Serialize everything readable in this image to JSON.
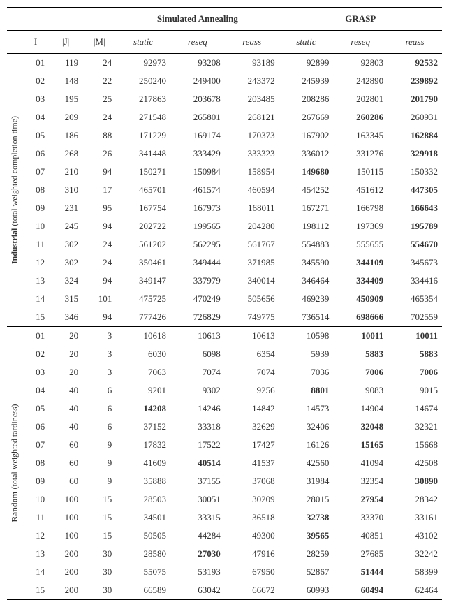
{
  "headers": {
    "sa": "Simulated Annealing",
    "grasp": "GRASP",
    "I": "I",
    "J": "|J|",
    "M": "|M|",
    "static": "static",
    "reseq": "reseq",
    "reass": "reass"
  },
  "groups": [
    {
      "label_bold": "Industrial",
      "label_rest": " (total weighted completion time)",
      "rows": [
        {
          "I": "01",
          "J": "119",
          "M": "24",
          "sa_static": "92973",
          "sa_reseq": "93208",
          "sa_reass": "93189",
          "g_static": "92899",
          "g_reseq": "92803",
          "g_reass": "92532",
          "bold": [
            "g_reass"
          ]
        },
        {
          "I": "02",
          "J": "148",
          "M": "22",
          "sa_static": "250240",
          "sa_reseq": "249400",
          "sa_reass": "243372",
          "g_static": "245939",
          "g_reseq": "242890",
          "g_reass": "239892",
          "bold": [
            "g_reass"
          ]
        },
        {
          "I": "03",
          "J": "195",
          "M": "25",
          "sa_static": "217863",
          "sa_reseq": "203678",
          "sa_reass": "203485",
          "g_static": "208286",
          "g_reseq": "202801",
          "g_reass": "201790",
          "bold": [
            "g_reass"
          ]
        },
        {
          "I": "04",
          "J": "209",
          "M": "24",
          "sa_static": "271548",
          "sa_reseq": "265801",
          "sa_reass": "268121",
          "g_static": "267669",
          "g_reseq": "260286",
          "g_reass": "260931",
          "bold": [
            "g_reseq"
          ]
        },
        {
          "I": "05",
          "J": "186",
          "M": "88",
          "sa_static": "171229",
          "sa_reseq": "169174",
          "sa_reass": "170373",
          "g_static": "167902",
          "g_reseq": "163345",
          "g_reass": "162884",
          "bold": [
            "g_reass"
          ]
        },
        {
          "I": "06",
          "J": "268",
          "M": "26",
          "sa_static": "341448",
          "sa_reseq": "333429",
          "sa_reass": "333323",
          "g_static": "336012",
          "g_reseq": "331276",
          "g_reass": "329918",
          "bold": [
            "g_reass"
          ]
        },
        {
          "I": "07",
          "J": "210",
          "M": "94",
          "sa_static": "150271",
          "sa_reseq": "150984",
          "sa_reass": "158954",
          "g_static": "149680",
          "g_reseq": "150115",
          "g_reass": "150332",
          "bold": [
            "g_static"
          ]
        },
        {
          "I": "08",
          "J": "310",
          "M": "17",
          "sa_static": "465701",
          "sa_reseq": "461574",
          "sa_reass": "460594",
          "g_static": "454252",
          "g_reseq": "451612",
          "g_reass": "447305",
          "bold": [
            "g_reass"
          ]
        },
        {
          "I": "09",
          "J": "231",
          "M": "95",
          "sa_static": "167754",
          "sa_reseq": "167973",
          "sa_reass": "168011",
          "g_static": "167271",
          "g_reseq": "166798",
          "g_reass": "166643",
          "bold": [
            "g_reass"
          ]
        },
        {
          "I": "10",
          "J": "245",
          "M": "94",
          "sa_static": "202722",
          "sa_reseq": "199565",
          "sa_reass": "204280",
          "g_static": "198112",
          "g_reseq": "197369",
          "g_reass": "195789",
          "bold": [
            "g_reass"
          ]
        },
        {
          "I": "11",
          "J": "302",
          "M": "24",
          "sa_static": "561202",
          "sa_reseq": "562295",
          "sa_reass": "561767",
          "g_static": "554883",
          "g_reseq": "555655",
          "g_reass": "554670",
          "bold": [
            "g_reass"
          ]
        },
        {
          "I": "12",
          "J": "302",
          "M": "24",
          "sa_static": "350461",
          "sa_reseq": "349444",
          "sa_reass": "371985",
          "g_static": "345590",
          "g_reseq": "344109",
          "g_reass": "345673",
          "bold": [
            "g_reseq"
          ]
        },
        {
          "I": "13",
          "J": "324",
          "M": "94",
          "sa_static": "349147",
          "sa_reseq": "337979",
          "sa_reass": "340014",
          "g_static": "346464",
          "g_reseq": "334409",
          "g_reass": "334416",
          "bold": [
            "g_reseq"
          ]
        },
        {
          "I": "14",
          "J": "315",
          "M": "101",
          "sa_static": "475725",
          "sa_reseq": "470249",
          "sa_reass": "505656",
          "g_static": "469239",
          "g_reseq": "450909",
          "g_reass": "465354",
          "bold": [
            "g_reseq"
          ]
        },
        {
          "I": "15",
          "J": "346",
          "M": "94",
          "sa_static": "777426",
          "sa_reseq": "726829",
          "sa_reass": "749775",
          "g_static": "736514",
          "g_reseq": "698666",
          "g_reass": "702559",
          "bold": [
            "g_reseq"
          ]
        }
      ]
    },
    {
      "label_bold": "Random",
      "label_rest": " (total weighted tardiness)",
      "rows": [
        {
          "I": "01",
          "J": "20",
          "M": "3",
          "sa_static": "10618",
          "sa_reseq": "10613",
          "sa_reass": "10613",
          "g_static": "10598",
          "g_reseq": "10011",
          "g_reass": "10011",
          "bold": [
            "g_reseq",
            "g_reass"
          ]
        },
        {
          "I": "02",
          "J": "20",
          "M": "3",
          "sa_static": "6030",
          "sa_reseq": "6098",
          "sa_reass": "6354",
          "g_static": "5939",
          "g_reseq": "5883",
          "g_reass": "5883",
          "bold": [
            "g_reseq",
            "g_reass"
          ]
        },
        {
          "I": "03",
          "J": "20",
          "M": "3",
          "sa_static": "7063",
          "sa_reseq": "7074",
          "sa_reass": "7074",
          "g_static": "7036",
          "g_reseq": "7006",
          "g_reass": "7006",
          "bold": [
            "g_reseq",
            "g_reass"
          ]
        },
        {
          "I": "04",
          "J": "40",
          "M": "6",
          "sa_static": "9201",
          "sa_reseq": "9302",
          "sa_reass": "9256",
          "g_static": "8801",
          "g_reseq": "9083",
          "g_reass": "9015",
          "bold": [
            "g_static"
          ]
        },
        {
          "I": "05",
          "J": "40",
          "M": "6",
          "sa_static": "14208",
          "sa_reseq": "14246",
          "sa_reass": "14842",
          "g_static": "14573",
          "g_reseq": "14904",
          "g_reass": "14674",
          "bold": [
            "sa_static"
          ]
        },
        {
          "I": "06",
          "J": "40",
          "M": "6",
          "sa_static": "37152",
          "sa_reseq": "33318",
          "sa_reass": "32629",
          "g_static": "32406",
          "g_reseq": "32048",
          "g_reass": "32321",
          "bold": [
            "g_reseq"
          ]
        },
        {
          "I": "07",
          "J": "60",
          "M": "9",
          "sa_static": "17832",
          "sa_reseq": "17522",
          "sa_reass": "17427",
          "g_static": "16126",
          "g_reseq": "15165",
          "g_reass": "15668",
          "bold": [
            "g_reseq"
          ]
        },
        {
          "I": "08",
          "J": "60",
          "M": "9",
          "sa_static": "41609",
          "sa_reseq": "40514",
          "sa_reass": "41537",
          "g_static": "42560",
          "g_reseq": "41094",
          "g_reass": "42508",
          "bold": [
            "sa_reseq"
          ]
        },
        {
          "I": "09",
          "J": "60",
          "M": "9",
          "sa_static": "35888",
          "sa_reseq": "37155",
          "sa_reass": "37068",
          "g_static": "31984",
          "g_reseq": "32354",
          "g_reass": "30890",
          "bold": [
            "g_reass"
          ]
        },
        {
          "I": "10",
          "J": "100",
          "M": "15",
          "sa_static": "28503",
          "sa_reseq": "30051",
          "sa_reass": "30209",
          "g_static": "28015",
          "g_reseq": "27954",
          "g_reass": "28342",
          "bold": [
            "g_reseq"
          ]
        },
        {
          "I": "11",
          "J": "100",
          "M": "15",
          "sa_static": "34501",
          "sa_reseq": "33315",
          "sa_reass": "36518",
          "g_static": "32738",
          "g_reseq": "33370",
          "g_reass": "33161",
          "bold": [
            "g_static"
          ]
        },
        {
          "I": "12",
          "J": "100",
          "M": "15",
          "sa_static": "50505",
          "sa_reseq": "44284",
          "sa_reass": "49300",
          "g_static": "39565",
          "g_reseq": "40851",
          "g_reass": "43102",
          "bold": [
            "g_static"
          ]
        },
        {
          "I": "13",
          "J": "200",
          "M": "30",
          "sa_static": "28580",
          "sa_reseq": "27030",
          "sa_reass": "47916",
          "g_static": "28259",
          "g_reseq": "27685",
          "g_reass": "32242",
          "bold": [
            "sa_reseq"
          ]
        },
        {
          "I": "14",
          "J": "200",
          "M": "30",
          "sa_static": "55075",
          "sa_reseq": "53193",
          "sa_reass": "67950",
          "g_static": "52867",
          "g_reseq": "51444",
          "g_reass": "58399",
          "bold": [
            "g_reseq"
          ]
        },
        {
          "I": "15",
          "J": "200",
          "M": "30",
          "sa_static": "66589",
          "sa_reseq": "63042",
          "sa_reass": "66672",
          "g_static": "60993",
          "g_reseq": "60494",
          "g_reass": "62464",
          "bold": [
            "g_reseq"
          ]
        }
      ]
    }
  ]
}
